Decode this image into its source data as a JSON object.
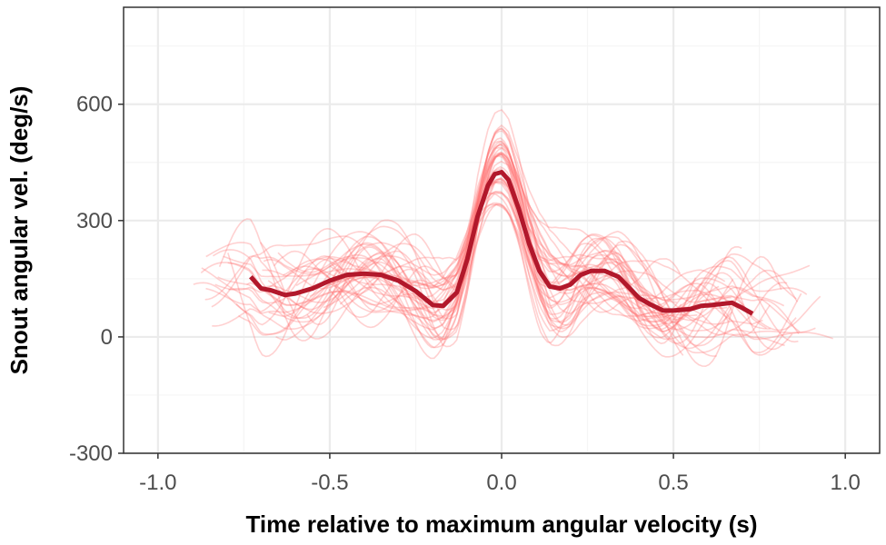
{
  "chart_data": {
    "type": "line",
    "title": "",
    "xlabel": "Time relative to maximum angular velocity (s)",
    "ylabel": "Snout angular vel. (deg/s)",
    "xlim": [
      -1.1,
      1.1
    ],
    "ylim": [
      -300,
      850
    ],
    "x_ticks": [
      -1.0,
      -0.5,
      0.0,
      0.5,
      1.0
    ],
    "x_tick_labels": [
      "-1.0",
      "-0.5",
      "0.0",
      "0.5",
      "1.0"
    ],
    "y_ticks": [
      -300,
      0,
      300,
      600
    ],
    "y_tick_labels": [
      "-300",
      "0",
      "300",
      "600"
    ],
    "grid": true,
    "legend": "none",
    "colors": {
      "individual_trials": "#ff6f6f",
      "mean_line": "#b2182b",
      "panel_border": "#333333",
      "grid_major": "#ebebeb",
      "grid_minor": "#f5f5f5"
    },
    "series": [
      {
        "role": "mean",
        "x": [
          -0.73,
          -0.7,
          -0.67,
          -0.63,
          -0.6,
          -0.55,
          -0.5,
          -0.45,
          -0.4,
          -0.35,
          -0.3,
          -0.25,
          -0.2,
          -0.17,
          -0.13,
          -0.1,
          -0.07,
          -0.04,
          -0.02,
          0.0,
          0.02,
          0.05,
          0.08,
          0.11,
          0.14,
          0.17,
          0.2,
          0.23,
          0.26,
          0.3,
          0.34,
          0.37,
          0.4,
          0.43,
          0.47,
          0.5,
          0.55,
          0.58,
          0.61,
          0.64,
          0.67,
          0.7,
          0.73
        ],
        "y": [
          155,
          125,
          120,
          108,
          112,
          125,
          145,
          160,
          163,
          160,
          145,
          118,
          82,
          80,
          115,
          200,
          310,
          390,
          420,
          425,
          405,
          330,
          240,
          170,
          130,
          125,
          135,
          160,
          170,
          170,
          155,
          128,
          100,
          85,
          68,
          68,
          72,
          80,
          82,
          85,
          88,
          75,
          60
        ]
      }
    ]
  }
}
